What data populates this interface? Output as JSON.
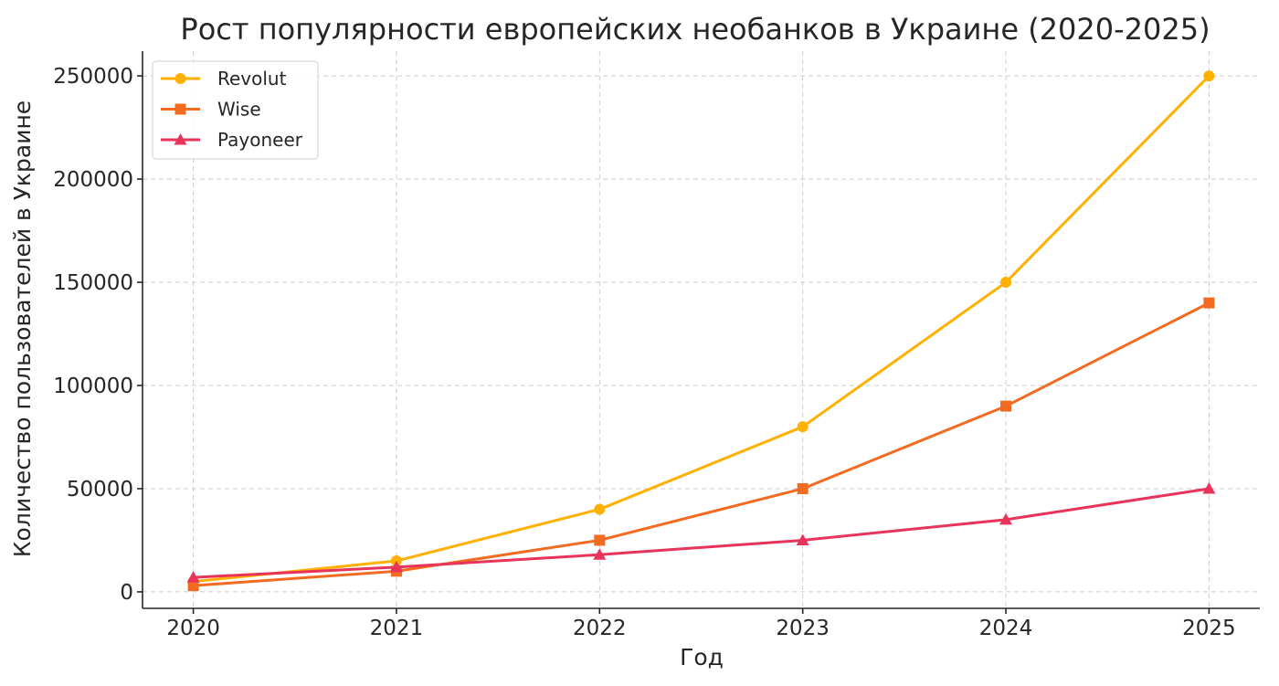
{
  "chart_data": {
    "type": "line",
    "title": "Рост популярности европейских необанков в Украине (2020-2025)",
    "xlabel": "Год",
    "ylabel": "Количество пользователей в Украине",
    "x": [
      2020,
      2021,
      2022,
      2023,
      2024,
      2025
    ],
    "x_tick_labels": [
      "2020",
      "2021",
      "2022",
      "2023",
      "2024",
      "2025"
    ],
    "y_ticks": [
      0,
      50000,
      100000,
      150000,
      200000,
      250000
    ],
    "y_tick_labels": [
      "0",
      "50000",
      "100000",
      "150000",
      "200000",
      "250000"
    ],
    "ylim": [
      -8000,
      262000
    ],
    "xlim": [
      2019.75,
      2025.25
    ],
    "grid": true,
    "legend_position": "top-left",
    "series": [
      {
        "name": "Revolut",
        "color": "#ffb000",
        "marker": "circle",
        "values": [
          5000,
          15000,
          40000,
          80000,
          150000,
          250000
        ]
      },
      {
        "name": "Wise",
        "color": "#f26b21",
        "marker": "square",
        "values": [
          3000,
          10000,
          25000,
          50000,
          90000,
          140000
        ]
      },
      {
        "name": "Payoneer",
        "color": "#e8335a",
        "marker": "triangle",
        "values": [
          7000,
          12000,
          18000,
          25000,
          35000,
          50000
        ]
      }
    ]
  }
}
